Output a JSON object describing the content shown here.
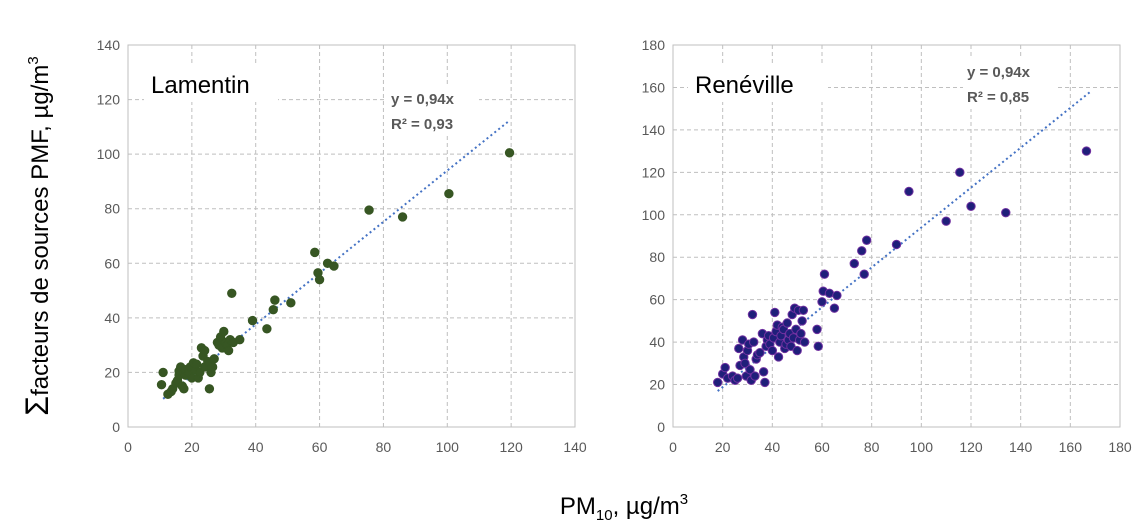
{
  "y_axis_label": {
    "symbol": "Σ",
    "text": "facteurs de sources PMF, µg/m",
    "sup": "3"
  },
  "x_axis_label": {
    "text_main": "PM",
    "sub": "10",
    "text_rest": ", µg/m",
    "sup": "3"
  },
  "chart_data": [
    {
      "type": "scatter",
      "site_label": "Lamentin",
      "equation": "y = 0,94x",
      "r2_label": "R² = 0,93",
      "slope": 0.94,
      "xlim": [
        0,
        140
      ],
      "ylim": [
        0,
        140
      ],
      "xticks": [
        0,
        20,
        40,
        60,
        80,
        100,
        120,
        140
      ],
      "yticks": [
        0,
        20,
        40,
        60,
        80,
        100,
        120,
        140
      ],
      "grid": true,
      "marker_color": "#375623",
      "marker_edge": "#375623",
      "trend_color": "#4472C4",
      "trend_range": [
        11,
        119
      ],
      "points": [
        [
          10.5,
          15.5
        ],
        [
          11,
          20
        ],
        [
          12.5,
          12
        ],
        [
          13.5,
          13
        ],
        [
          14,
          14
        ],
        [
          15,
          16
        ],
        [
          15.5,
          17
        ],
        [
          16,
          19
        ],
        [
          16,
          20.5
        ],
        [
          16.5,
          22
        ],
        [
          17,
          15
        ],
        [
          17.5,
          14
        ],
        [
          18,
          19
        ],
        [
          18,
          21
        ],
        [
          19,
          20
        ],
        [
          19.5,
          22
        ],
        [
          20,
          18
        ],
        [
          20.5,
          23.5
        ],
        [
          21,
          21
        ],
        [
          21.5,
          23
        ],
        [
          22,
          18
        ],
        [
          22.5,
          20
        ],
        [
          23,
          29
        ],
        [
          23.5,
          26
        ],
        [
          24,
          28
        ],
        [
          24,
          22
        ],
        [
          25,
          24
        ],
        [
          25.5,
          14
        ],
        [
          26,
          20
        ],
        [
          26.5,
          22
        ],
        [
          27,
          25
        ],
        [
          28,
          31
        ],
        [
          28.5,
          30
        ],
        [
          29,
          33
        ],
        [
          29.5,
          29
        ],
        [
          30,
          35
        ],
        [
          30.5,
          31
        ],
        [
          31,
          30
        ],
        [
          31.5,
          28
        ],
        [
          32,
          32
        ],
        [
          32.5,
          49
        ],
        [
          33,
          31
        ],
        [
          35,
          32
        ],
        [
          39,
          39
        ],
        [
          43.5,
          36
        ],
        [
          45.5,
          43
        ],
        [
          46,
          46.5
        ],
        [
          51,
          45.5
        ],
        [
          58.5,
          64
        ],
        [
          59.5,
          56.5
        ],
        [
          60,
          54
        ],
        [
          62.5,
          60
        ],
        [
          64.5,
          59
        ],
        [
          75.5,
          79.5
        ],
        [
          86,
          77
        ],
        [
          100.5,
          85.5
        ],
        [
          119.5,
          100.5
        ]
      ]
    },
    {
      "type": "scatter",
      "site_label": "Renéville",
      "equation": "y = 0,94x",
      "r2_label": "R² = 0,85",
      "slope": 0.94,
      "xlim": [
        0,
        180
      ],
      "ylim": [
        0,
        180
      ],
      "xticks": [
        0,
        20,
        40,
        60,
        80,
        100,
        120,
        140,
        160,
        180
      ],
      "yticks": [
        0,
        20,
        40,
        60,
        80,
        100,
        120,
        140,
        160,
        180
      ],
      "grid": true,
      "marker_color": "#1F1F7A",
      "marker_edge": "#7030A0",
      "trend_color": "#4472C4",
      "trend_range": [
        18,
        168
      ],
      "points": [
        [
          18,
          21
        ],
        [
          20,
          25
        ],
        [
          21,
          28
        ],
        [
          22,
          23
        ],
        [
          24,
          24
        ],
        [
          25,
          22
        ],
        [
          26,
          23
        ],
        [
          26.5,
          37
        ],
        [
          27,
          29
        ],
        [
          28,
          41
        ],
        [
          28.5,
          33
        ],
        [
          29,
          30
        ],
        [
          29.5,
          24
        ],
        [
          30,
          36
        ],
        [
          30.5,
          39
        ],
        [
          31,
          27
        ],
        [
          31.5,
          22
        ],
        [
          32,
          53
        ],
        [
          32.5,
          40
        ],
        [
          33,
          24
        ],
        [
          33.5,
          32
        ],
        [
          34,
          34
        ],
        [
          35,
          35
        ],
        [
          36,
          44
        ],
        [
          36.5,
          26
        ],
        [
          37,
          21
        ],
        [
          37.5,
          38
        ],
        [
          38,
          41
        ],
        [
          38.5,
          43
        ],
        [
          39,
          39
        ],
        [
          40,
          36
        ],
        [
          40.5,
          42
        ],
        [
          41,
          54
        ],
        [
          41.5,
          45
        ],
        [
          42,
          48
        ],
        [
          42.5,
          33
        ],
        [
          43,
          40
        ],
        [
          43.5,
          43
        ],
        [
          44,
          47
        ],
        [
          44.5,
          46
        ],
        [
          45,
          37
        ],
        [
          45.5,
          39
        ],
        [
          46,
          49
        ],
        [
          46.5,
          41
        ],
        [
          47,
          44
        ],
        [
          47.5,
          38
        ],
        [
          48,
          53
        ],
        [
          48.5,
          42
        ],
        [
          49,
          56
        ],
        [
          49.5,
          46
        ],
        [
          50,
          36
        ],
        [
          50.5,
          55
        ],
        [
          51,
          41
        ],
        [
          51.5,
          44
        ],
        [
          52,
          50
        ],
        [
          52.5,
          55
        ],
        [
          53,
          40
        ],
        [
          58,
          46
        ],
        [
          58.5,
          38
        ],
        [
          60,
          59
        ],
        [
          60.5,
          64
        ],
        [
          61,
          72
        ],
        [
          63,
          63
        ],
        [
          65,
          56
        ],
        [
          66,
          62
        ],
        [
          73,
          77
        ],
        [
          76,
          83
        ],
        [
          77,
          72
        ],
        [
          78,
          88
        ],
        [
          90,
          86
        ],
        [
          95,
          111
        ],
        [
          110,
          97
        ],
        [
          115.5,
          120
        ],
        [
          120,
          104
        ],
        [
          134,
          101
        ],
        [
          166.5,
          130
        ]
      ]
    }
  ]
}
